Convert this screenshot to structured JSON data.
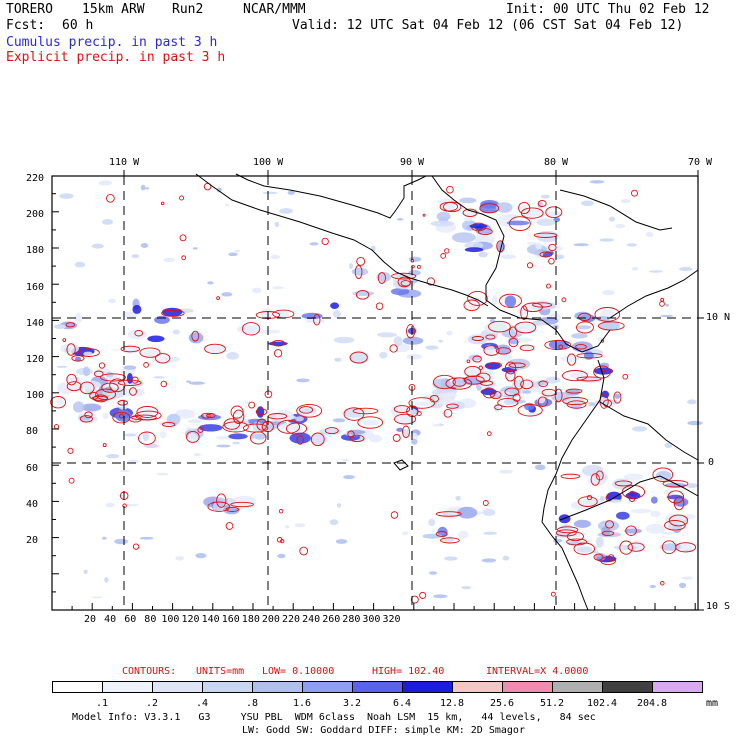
{
  "header": {
    "model": "TORERO",
    "resolution": "15km ARW",
    "run": "Run2",
    "org": "NCAR/MMM",
    "init": "Init: 00 UTC Thu 02 Feb 12",
    "fcst_label": "Fcst:",
    "fcst_value": "60 h",
    "valid": "Valid: 12 UTC Sat 04 Feb 12 (06 CST Sat 04 Feb 12)"
  },
  "legend": {
    "cumulus": "Cumulus precip. in past 3 h",
    "explicit": "Explicit precip. in past 3 h"
  },
  "axes": {
    "top_labels": [
      "110 W",
      "100 W",
      "90 W",
      "80 W",
      "70 W"
    ],
    "left_labels": [
      "220",
      "200",
      "180",
      "160",
      "140",
      "120",
      "100",
      "80",
      "60",
      "40",
      "20"
    ],
    "bottom_labels": [
      "20",
      "40",
      "60",
      "80",
      "100",
      "120",
      "140",
      "160",
      "180",
      "200",
      "220",
      "240",
      "260",
      "280",
      "300",
      "320"
    ],
    "right_labels": [
      "10 N",
      "0",
      "10 S"
    ]
  },
  "contours": {
    "label": "CONTOURS:",
    "units": "UNITS=mm",
    "low": "LOW= 0.10000",
    "high": "HIGH= 102.40",
    "interval": "INTERVAL=X 4.0000"
  },
  "colorbar": {
    "labels": [
      ".1",
      ".2",
      ".4",
      ".8",
      "1.6",
      "3.2",
      "6.4",
      "12.8",
      "25.6",
      "51.2",
      "102.4",
      "204.8"
    ],
    "unit": "mm",
    "colors": [
      "#ffffff",
      "#eef2fb",
      "#dde5f7",
      "#c8d6f2",
      "#aebff0",
      "#8e9ef0",
      "#5a64ea",
      "#1c1ce0",
      "#f6c6c6",
      "#f08cb0",
      "#b0b0b0",
      "#404040",
      "#d8a8f4"
    ]
  },
  "footer": {
    "line1": "Model Info: V3.3.1   G3     YSU PBL  WDM 6class  Noah LSM  15 km,   44 levels,   84 sec",
    "line2": "LW: Godd SW: Goddard DIFF: simple KM: 2D Smagor"
  },
  "map": {
    "domain": "Eastern Pacific / Central America / NW South America",
    "cumulus_color": "#5060e0",
    "explicit_color": "#e01010",
    "coastline_color": "#000000",
    "grid_style": "dashed"
  }
}
